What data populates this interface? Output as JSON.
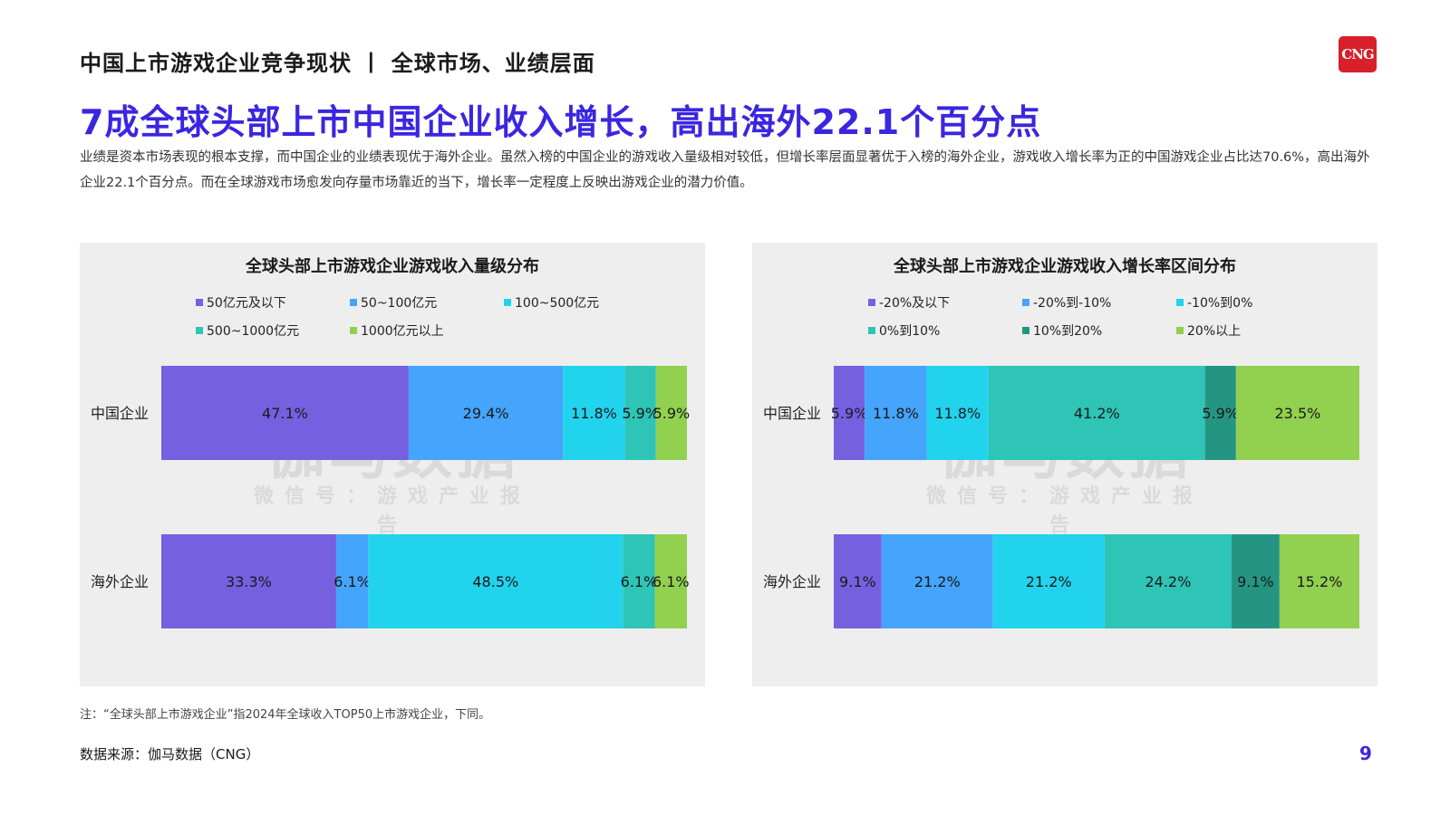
{
  "header": {
    "section_title": "中国上市游戏企业竞争现状 丨 全球市场、业绩层面",
    "logo_text": "CNG"
  },
  "headline": "7成全球头部上市中国企业收入增长，高出海外22.1个百分点",
  "description": "业绩是资本市场表现的根本支撑，而中国企业的业绩表现优于海外企业。虽然入榜的中国企业的游戏收入量级相对较低，但增长率层面显著优于入榜的海外企业，游戏收入增长率为正的中国游戏企业占比达70.6%，高出海外企业22.1个百分点。而在全球游戏市场愈发向存量市场靠近的当下，增长率一定程度上反映出游戏企业的潜力价值。",
  "watermark": {
    "main": "伽马数据",
    "sub": "微信号：游戏产业报告"
  },
  "footnote": "注：“全球头部上市游戏企业”指2024年全球收入TOP50上市游戏企业，下同。",
  "source": "数据来源：伽马数据（CNG）",
  "page_number": "9",
  "chart_data": [
    {
      "type": "bar",
      "orientation": "horizontal",
      "stacked": "percent",
      "title": "全球头部上市游戏企业游戏收入量级分布",
      "categories": [
        "中国企业",
        "海外企业"
      ],
      "legend_position": "top",
      "series": [
        {
          "name": "50亿元及以下",
          "color": "#7560e0",
          "values": [
            47.1,
            33.3
          ],
          "labels": [
            "47.1%",
            "33.3%"
          ]
        },
        {
          "name": "50~100亿元",
          "color": "#45a4fb",
          "values": [
            29.4,
            6.1
          ],
          "labels": [
            "29.4%",
            "6.1%"
          ]
        },
        {
          "name": "100~500亿元",
          "color": "#22d3ee",
          "values": [
            11.8,
            48.5
          ],
          "labels": [
            "11.8%",
            "48.5%"
          ]
        },
        {
          "name": "500~1000亿元",
          "color": "#2ec4b6",
          "values": [
            5.9,
            6.1
          ],
          "labels": [
            "5.9%",
            "6.1%"
          ]
        },
        {
          "name": "1000亿元以上",
          "color": "#92d050",
          "values": [
            5.9,
            6.1
          ],
          "labels": [
            "5.9%",
            "6.1%"
          ]
        }
      ]
    },
    {
      "type": "bar",
      "orientation": "horizontal",
      "stacked": "percent",
      "title": "全球头部上市游戏企业游戏收入增长率区间分布",
      "categories": [
        "中国企业",
        "海外企业"
      ],
      "legend_position": "top",
      "series": [
        {
          "name": "-20%及以下",
          "color": "#7560e0",
          "values": [
            5.9,
            9.1
          ],
          "labels": [
            "5.9%",
            "9.1%"
          ]
        },
        {
          "name": "-20%到-10%",
          "color": "#45a4fb",
          "values": [
            11.8,
            21.2
          ],
          "labels": [
            "11.8%",
            "21.2%"
          ]
        },
        {
          "name": "-10%到0%",
          "color": "#22d3ee",
          "values": [
            11.8,
            21.2
          ],
          "labels": [
            "11.8%",
            "21.2%"
          ]
        },
        {
          "name": "0%到10%",
          "color": "#2ec4b6",
          "values": [
            41.2,
            24.2
          ],
          "labels": [
            "41.2%",
            "24.2%"
          ]
        },
        {
          "name": "10%到20%",
          "color": "#259583",
          "values": [
            5.9,
            9.1
          ],
          "labels": [
            "5.9%",
            "9.1%"
          ]
        },
        {
          "name": "20%以上",
          "color": "#92d050",
          "values": [
            23.5,
            15.2
          ],
          "labels": [
            "23.5%",
            "15.2%"
          ]
        }
      ]
    }
  ]
}
